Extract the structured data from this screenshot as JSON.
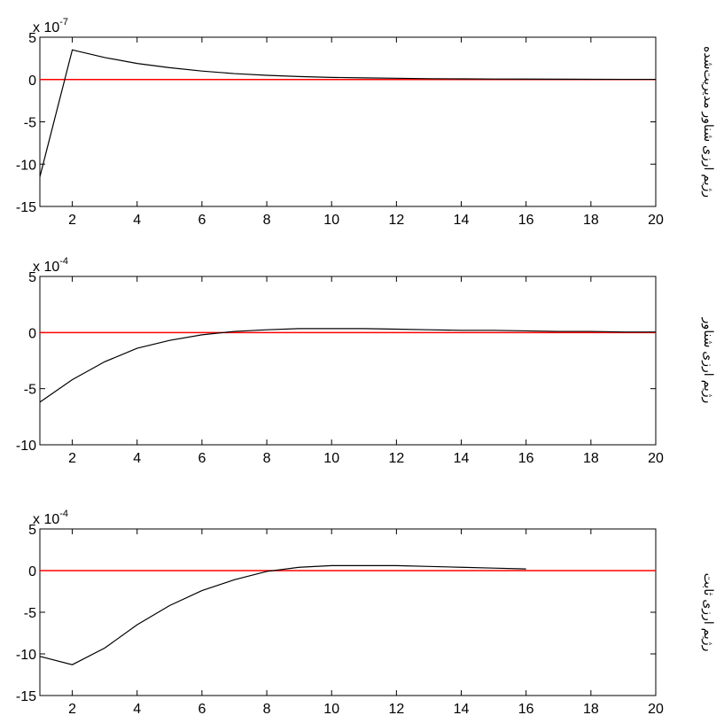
{
  "chart_data": [
    {
      "type": "line",
      "scale_base": "x 10",
      "scale_exponent": "-7",
      "ylabel": "رژیم ارزی شناور مدیریت‌شده",
      "x": [
        1,
        2,
        3,
        4,
        5,
        6,
        7,
        8,
        9,
        10,
        11,
        12,
        13,
        14,
        15,
        16,
        17,
        18,
        19,
        20
      ],
      "values": [
        -11.5,
        3.5,
        2.6,
        1.9,
        1.4,
        1.0,
        0.7,
        0.5,
        0.35,
        0.25,
        0.2,
        0.15,
        0.1,
        0.08,
        0.06,
        0.05,
        0.04,
        0.03,
        0.02,
        0.02
      ],
      "color": "#000000",
      "reference_line": {
        "value": 0,
        "color": "#ff0000"
      },
      "xlim": [
        1,
        20
      ],
      "xticks": [
        2,
        4,
        6,
        8,
        10,
        12,
        14,
        16,
        18,
        20
      ],
      "ylim": [
        -15,
        5
      ],
      "yticks": [
        5,
        0,
        -5,
        -10,
        -15
      ]
    },
    {
      "type": "line",
      "scale_base": "x 10",
      "scale_exponent": "-4",
      "ylabel": "رژیم ارزی شناور",
      "x": [
        1,
        2,
        3,
        4,
        5,
        6,
        7,
        8,
        9,
        10,
        11,
        12,
        13,
        14,
        15,
        16,
        17,
        18,
        19,
        20
      ],
      "values": [
        -6.2,
        -4.2,
        -2.6,
        -1.4,
        -0.7,
        -0.2,
        0.1,
        0.25,
        0.35,
        0.35,
        0.35,
        0.3,
        0.25,
        0.2,
        0.2,
        0.15,
        0.1,
        0.1,
        0.05,
        0.05
      ],
      "color": "#000000",
      "reference_line": {
        "value": 0,
        "color": "#ff0000"
      },
      "xlim": [
        1,
        20
      ],
      "xticks": [
        2,
        4,
        6,
        8,
        10,
        12,
        14,
        16,
        18,
        20
      ],
      "ylim": [
        -10,
        5
      ],
      "yticks": [
        5,
        0,
        -5,
        -10
      ]
    },
    {
      "type": "line",
      "scale_base": "x 10",
      "scale_exponent": "-4",
      "ylabel": "رژیم ارزی ثابت",
      "x": [
        1,
        2,
        3,
        4,
        5,
        6,
        7,
        8,
        9,
        10,
        11,
        12,
        13,
        14,
        15,
        16,
        17,
        18,
        19,
        20
      ],
      "values": [
        -10.3,
        -11.3,
        -9.3,
        -6.5,
        -4.2,
        -2.4,
        -1.1,
        -0.1,
        0.4,
        0.6,
        0.6,
        0.6,
        0.5,
        0.4,
        0.3,
        0.2,
        null,
        null,
        null,
        null
      ],
      "color": "#000000",
      "reference_line": {
        "value": 0,
        "color": "#ff0000"
      },
      "xlim": [
        1,
        20
      ],
      "xticks": [
        2,
        4,
        6,
        8,
        10,
        12,
        14,
        16,
        18,
        20
      ],
      "ylim": [
        -15,
        5
      ],
      "yticks": [
        5,
        0,
        -5,
        -10,
        -15
      ]
    }
  ]
}
